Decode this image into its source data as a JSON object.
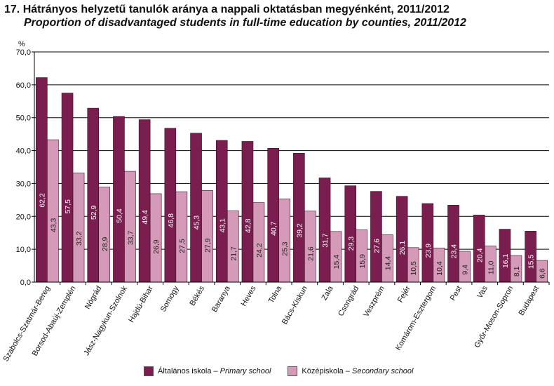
{
  "title": "17. Hátrányos helyzetű tanulók aránya a nappali oktatásban megyénként, 2011/2012",
  "subtitle": "Proportion of disadvantaged students in full-time education by counties, 2011/2012",
  "chart_data": {
    "type": "bar",
    "ylabel": "%",
    "ylim": [
      0,
      70
    ],
    "yticks": [
      "0,0",
      "10,0",
      "20,0",
      "30,0",
      "40,0",
      "50,0",
      "60,0",
      "70,0"
    ],
    "grid": true,
    "legend_position": "bottom",
    "categories": [
      "Szabolcs-Szatmár-Bereg",
      "Borsod-Abaúj-Zemplén",
      "Nógrád",
      "Jász-Nagykun-Szolnok",
      "Hajdú-Bihar",
      "Somogy",
      "Békés",
      "Baranya",
      "Heves",
      "Tolna",
      "Bács-Kiskun",
      "Zala",
      "Csongrád",
      "Veszprém",
      "Fejér",
      "Komárom-Esztergom",
      "Pest",
      "Vas",
      "Győr-Moson-Sopron",
      "Budapest"
    ],
    "series": [
      {
        "name": "Általános iskola – Primary school",
        "name_hu": "Általános iskola",
        "name_en": "Primary school",
        "color": "#7a1d4f",
        "values": [
          62.2,
          57.5,
          52.9,
          50.4,
          49.4,
          46.8,
          45.3,
          43.1,
          42.8,
          40.7,
          39.2,
          31.7,
          29.3,
          27.6,
          26.1,
          23.9,
          23.4,
          20.4,
          16.1,
          15.5
        ],
        "labels": [
          "62,2",
          "57,5",
          "52,9",
          "50,4",
          "49,4",
          "46,8",
          "45,3",
          "43,1",
          "42,8",
          "40,7",
          "39,2",
          "31,7",
          "29,3",
          "27,6",
          "26,1",
          "23,9",
          "23,4",
          "20,4",
          "16,1",
          "15,5"
        ]
      },
      {
        "name": "Középiskola – Secondary school",
        "name_hu": "Középiskola",
        "name_en": "Secondary school",
        "color": "#d59ab8",
        "values": [
          43.3,
          33.2,
          28.9,
          33.7,
          26.9,
          27.5,
          27.9,
          21.7,
          24.2,
          25.3,
          21.6,
          15.4,
          15.9,
          14.4,
          10.5,
          10.4,
          9.4,
          11.0,
          8.1,
          6.6
        ],
        "labels": [
          "43,3",
          "33,2",
          "28,9",
          "33,7",
          "26,9",
          "27,5",
          "27,9",
          "21,7",
          "24,2",
          "25,3",
          "21,6",
          "15,4",
          "15,9",
          "14,4",
          "10,5",
          "10,4",
          "9,4",
          "11,0",
          "8,1",
          "6,6"
        ]
      }
    ]
  }
}
